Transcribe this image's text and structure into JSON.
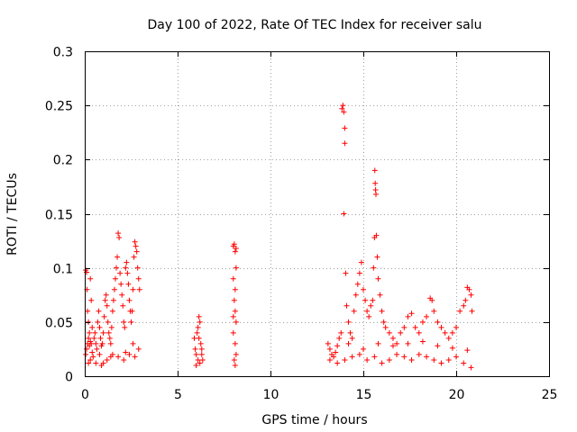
{
  "chart_data": {
    "type": "scatter",
    "title": "Day 100 of 2022, Rate Of TEC Index for receiver salu",
    "xlabel": "GPS time / hours",
    "ylabel": "ROTI / TECUs",
    "xlim": [
      0,
      25
    ],
    "ylim": [
      0,
      0.3
    ],
    "xticks": [
      0,
      5,
      10,
      15,
      20,
      25
    ],
    "xtick_labels": [
      "0",
      "5",
      "10",
      "15",
      "20",
      "25"
    ],
    "yticks": [
      0,
      0.05,
      0.1,
      0.15,
      0.2,
      0.25,
      0.3
    ],
    "ytick_labels": [
      "0",
      "0.05",
      "0.1",
      "0.15",
      "0.2",
      "0.25",
      "0.3"
    ],
    "grid": true,
    "marker": "+",
    "color": "#ff0000",
    "series": [
      {
        "name": "ROTI",
        "points": [
          [
            0.05,
            0.098
          ],
          [
            0.1,
            0.096
          ],
          [
            0.12,
            0.08
          ],
          [
            0.15,
            0.06
          ],
          [
            0.2,
            0.05
          ],
          [
            0.25,
            0.04
          ],
          [
            0.3,
            0.09
          ],
          [
            0.35,
            0.07
          ],
          [
            0.4,
            0.045
          ],
          [
            0.05,
            0.02
          ],
          [
            0.1,
            0.025
          ],
          [
            0.15,
            0.03
          ],
          [
            0.2,
            0.035
          ],
          [
            0.25,
            0.028
          ],
          [
            0.3,
            0.032
          ],
          [
            0.35,
            0.03
          ],
          [
            0.4,
            0.022
          ],
          [
            0.45,
            0.018
          ],
          [
            0.5,
            0.035
          ],
          [
            0.55,
            0.04
          ],
          [
            0.6,
            0.03
          ],
          [
            0.65,
            0.025
          ],
          [
            0.7,
            0.05
          ],
          [
            0.75,
            0.06
          ],
          [
            0.8,
            0.045
          ],
          [
            0.85,
            0.035
          ],
          [
            0.9,
            0.028
          ],
          [
            0.95,
            0.03
          ],
          [
            1.0,
            0.04
          ],
          [
            1.05,
            0.055
          ],
          [
            1.1,
            0.07
          ],
          [
            1.15,
            0.075
          ],
          [
            1.2,
            0.065
          ],
          [
            1.25,
            0.05
          ],
          [
            1.3,
            0.04
          ],
          [
            1.35,
            0.035
          ],
          [
            1.4,
            0.03
          ],
          [
            1.45,
            0.045
          ],
          [
            1.5,
            0.06
          ],
          [
            1.55,
            0.07
          ],
          [
            1.6,
            0.08
          ],
          [
            1.65,
            0.09
          ],
          [
            1.7,
            0.1
          ],
          [
            1.75,
            0.11
          ],
          [
            1.8,
            0.132
          ],
          [
            1.85,
            0.128
          ],
          [
            1.9,
            0.095
          ],
          [
            1.95,
            0.085
          ],
          [
            2.0,
            0.075
          ],
          [
            2.05,
            0.065
          ],
          [
            2.1,
            0.05
          ],
          [
            2.15,
            0.045
          ],
          [
            2.2,
            0.1
          ],
          [
            2.25,
            0.105
          ],
          [
            2.3,
            0.095
          ],
          [
            2.35,
            0.085
          ],
          [
            2.4,
            0.07
          ],
          [
            2.45,
            0.06
          ],
          [
            2.5,
            0.05
          ],
          [
            2.55,
            0.06
          ],
          [
            2.6,
            0.08
          ],
          [
            2.65,
            0.11
          ],
          [
            2.7,
            0.124
          ],
          [
            2.75,
            0.12
          ],
          [
            2.8,
            0.115
          ],
          [
            2.85,
            0.1
          ],
          [
            2.9,
            0.09
          ],
          [
            2.95,
            0.08
          ],
          [
            0.3,
            0.015
          ],
          [
            0.6,
            0.012
          ],
          [
            0.9,
            0.01
          ],
          [
            1.2,
            0.015
          ],
          [
            1.5,
            0.02
          ],
          [
            1.8,
            0.018
          ],
          [
            2.1,
            0.015
          ],
          [
            2.4,
            0.02
          ],
          [
            2.7,
            0.018
          ],
          [
            2.9,
            0.025
          ],
          [
            0.2,
            0.012
          ],
          [
            1.0,
            0.012
          ],
          [
            1.4,
            0.018
          ],
          [
            2.2,
            0.022
          ],
          [
            2.6,
            0.03
          ],
          [
            0.8,
            0.02
          ],
          [
            5.9,
            0.035
          ],
          [
            5.95,
            0.025
          ],
          [
            6.0,
            0.02
          ],
          [
            6.05,
            0.04
          ],
          [
            6.1,
            0.045
          ],
          [
            6.15,
            0.055
          ],
          [
            6.2,
            0.05
          ],
          [
            6.25,
            0.03
          ],
          [
            6.3,
            0.02
          ],
          [
            6.35,
            0.015
          ],
          [
            6.0,
            0.01
          ],
          [
            6.1,
            0.015
          ],
          [
            6.2,
            0.012
          ],
          [
            6.3,
            0.025
          ],
          [
            6.15,
            0.035
          ],
          [
            8.0,
            0.12
          ],
          [
            8.05,
            0.122
          ],
          [
            8.1,
            0.115
          ],
          [
            8.15,
            0.1
          ],
          [
            8.0,
            0.09
          ],
          [
            8.1,
            0.08
          ],
          [
            8.05,
            0.07
          ],
          [
            8.1,
            0.06
          ],
          [
            8.15,
            0.05
          ],
          [
            8.0,
            0.04
          ],
          [
            8.1,
            0.03
          ],
          [
            8.15,
            0.02
          ],
          [
            8.05,
            0.015
          ],
          [
            8.1,
            0.01
          ],
          [
            8.0,
            0.055
          ],
          [
            8.15,
            0.118
          ],
          [
            13.1,
            0.03
          ],
          [
            13.2,
            0.025
          ],
          [
            13.3,
            0.02
          ],
          [
            13.4,
            0.018
          ],
          [
            13.5,
            0.022
          ],
          [
            13.6,
            0.028
          ],
          [
            13.7,
            0.035
          ],
          [
            13.8,
            0.04
          ],
          [
            13.85,
            0.247
          ],
          [
            13.9,
            0.25
          ],
          [
            13.95,
            0.244
          ],
          [
            14.0,
            0.229
          ],
          [
            14.0,
            0.215
          ],
          [
            13.95,
            0.15
          ],
          [
            14.05,
            0.095
          ],
          [
            14.1,
            0.065
          ],
          [
            14.2,
            0.05
          ],
          [
            14.3,
            0.04
          ],
          [
            14.4,
            0.035
          ],
          [
            14.5,
            0.06
          ],
          [
            14.6,
            0.075
          ],
          [
            14.7,
            0.085
          ],
          [
            14.8,
            0.095
          ],
          [
            14.9,
            0.105
          ],
          [
            15.0,
            0.08
          ],
          [
            15.1,
            0.07
          ],
          [
            15.2,
            0.06
          ],
          [
            15.3,
            0.055
          ],
          [
            15.4,
            0.065
          ],
          [
            15.5,
            0.07
          ],
          [
            15.55,
            0.1
          ],
          [
            15.6,
            0.128
          ],
          [
            15.62,
            0.19
          ],
          [
            15.64,
            0.178
          ],
          [
            15.66,
            0.172
          ],
          [
            15.68,
            0.168
          ],
          [
            15.7,
            0.13
          ],
          [
            15.75,
            0.11
          ],
          [
            15.8,
            0.09
          ],
          [
            15.9,
            0.075
          ],
          [
            16.0,
            0.06
          ],
          [
            16.1,
            0.05
          ],
          [
            16.2,
            0.045
          ],
          [
            16.4,
            0.04
          ],
          [
            16.6,
            0.035
          ],
          [
            16.8,
            0.03
          ],
          [
            17.0,
            0.04
          ],
          [
            17.2,
            0.045
          ],
          [
            17.4,
            0.055
          ],
          [
            17.6,
            0.058
          ],
          [
            17.8,
            0.045
          ],
          [
            18.0,
            0.04
          ],
          [
            18.2,
            0.05
          ],
          [
            18.4,
            0.055
          ],
          [
            18.6,
            0.072
          ],
          [
            18.7,
            0.07
          ],
          [
            18.8,
            0.06
          ],
          [
            19.0,
            0.05
          ],
          [
            19.2,
            0.045
          ],
          [
            19.4,
            0.04
          ],
          [
            19.6,
            0.035
          ],
          [
            19.8,
            0.04
          ],
          [
            20.0,
            0.045
          ],
          [
            20.2,
            0.06
          ],
          [
            20.4,
            0.065
          ],
          [
            20.5,
            0.07
          ],
          [
            20.6,
            0.082
          ],
          [
            20.7,
            0.08
          ],
          [
            20.8,
            0.075
          ],
          [
            20.85,
            0.06
          ],
          [
            13.2,
            0.015
          ],
          [
            13.6,
            0.012
          ],
          [
            14.0,
            0.015
          ],
          [
            14.4,
            0.018
          ],
          [
            14.8,
            0.02
          ],
          [
            15.2,
            0.015
          ],
          [
            15.6,
            0.018
          ],
          [
            16.0,
            0.012
          ],
          [
            16.4,
            0.015
          ],
          [
            16.8,
            0.02
          ],
          [
            17.2,
            0.018
          ],
          [
            17.6,
            0.015
          ],
          [
            18.0,
            0.02
          ],
          [
            18.4,
            0.018
          ],
          [
            18.8,
            0.015
          ],
          [
            19.2,
            0.012
          ],
          [
            19.6,
            0.015
          ],
          [
            20.0,
            0.018
          ],
          [
            20.4,
            0.012
          ],
          [
            20.8,
            0.008
          ],
          [
            14.2,
            0.03
          ],
          [
            15.0,
            0.025
          ],
          [
            15.8,
            0.03
          ],
          [
            16.6,
            0.028
          ],
          [
            17.4,
            0.03
          ],
          [
            18.2,
            0.032
          ],
          [
            19.0,
            0.028
          ],
          [
            19.8,
            0.026
          ],
          [
            20.6,
            0.024
          ]
        ]
      }
    ]
  }
}
